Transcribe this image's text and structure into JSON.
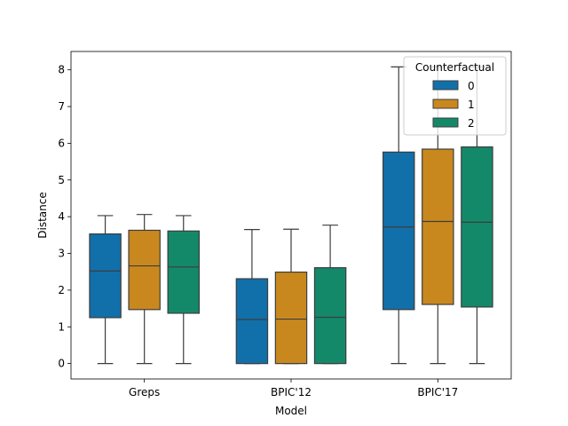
{
  "chart_data": {
    "type": "box",
    "xlabel": "Model",
    "ylabel": "Distance",
    "ylim": [
      -0.42,
      8.5
    ],
    "yticks": [
      0,
      1,
      2,
      3,
      4,
      5,
      6,
      7,
      8
    ],
    "categories": [
      "Greps",
      "BPIC'12",
      "BPIC'17"
    ],
    "legend": {
      "title": "Counterfactual",
      "position": "top-right"
    },
    "series": [
      {
        "name": "0",
        "color": "#1170aa",
        "boxes": [
          {
            "min": 0,
            "q1": 1.25,
            "median": 2.52,
            "q3": 3.53,
            "max": 4.03
          },
          {
            "min": 0,
            "q1": 0.0,
            "median": 1.2,
            "q3": 2.31,
            "max": 3.65
          },
          {
            "min": 0,
            "q1": 1.47,
            "median": 3.72,
            "q3": 5.76,
            "max": 8.08
          }
        ]
      },
      {
        "name": "1",
        "color": "#c9881e",
        "boxes": [
          {
            "min": 0,
            "q1": 1.47,
            "median": 2.66,
            "q3": 3.63,
            "max": 4.06
          },
          {
            "min": 0,
            "q1": 0.0,
            "median": 1.21,
            "q3": 2.49,
            "max": 3.66
          },
          {
            "min": 0,
            "q1": 1.61,
            "median": 3.87,
            "q3": 5.84,
            "max": 8.08
          }
        ]
      },
      {
        "name": "2",
        "color": "#13896a",
        "boxes": [
          {
            "min": 0,
            "q1": 1.37,
            "median": 2.63,
            "q3": 3.61,
            "max": 4.03
          },
          {
            "min": 0,
            "q1": 0.0,
            "median": 1.26,
            "q3": 2.61,
            "max": 3.77
          },
          {
            "min": 0,
            "q1": 1.54,
            "median": 3.85,
            "q3": 5.9,
            "max": 8.08
          }
        ]
      }
    ]
  }
}
